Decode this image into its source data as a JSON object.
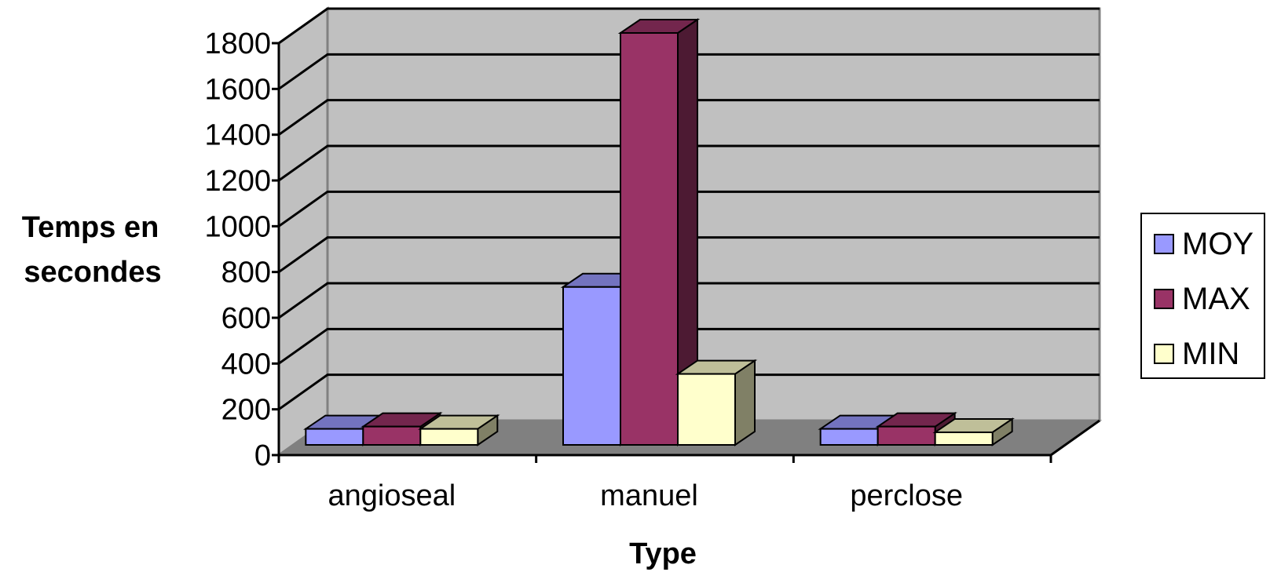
{
  "chart_data": {
    "type": "bar",
    "style": "3d-clustered-column",
    "categories": [
      "angioseal",
      "manuel",
      "perclose"
    ],
    "series": [
      {
        "name": "MOY",
        "values": [
          70,
          690,
          70
        ],
        "color": "#9999ff"
      },
      {
        "name": "MAX",
        "values": [
          80,
          1800,
          80
        ],
        "color": "#993366"
      },
      {
        "name": "MIN",
        "values": [
          70,
          310,
          55
        ],
        "color": "#ffffcc"
      }
    ],
    "title": "",
    "xlabel": "Type",
    "ylabel": "Temps en secondes",
    "ylabel_lines": [
      "Temps en",
      "secondes"
    ],
    "ylim": [
      0,
      1800
    ],
    "yticks": [
      0,
      200,
      400,
      600,
      800,
      1000,
      1200,
      1400,
      1600,
      1800
    ],
    "grid": true,
    "legend_position": "right",
    "colors": {
      "wall": "#c0c0c0",
      "floor": "#808080",
      "gridline": "#000000"
    }
  }
}
